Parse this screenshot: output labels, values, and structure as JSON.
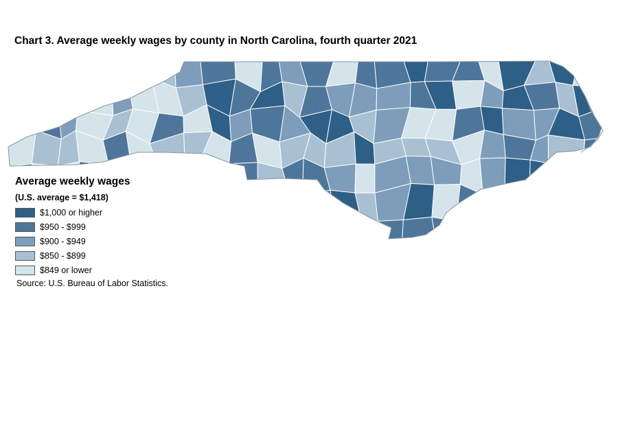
{
  "title": "Chart 3. Average weekly wages by county in North Carolina, fourth quarter 2021",
  "legend": {
    "title": "Average weekly wages",
    "subtitle": "(U.S. average = $1,418)",
    "items": [
      {
        "label": "$1,000 or higher",
        "color": "#2e5f86"
      },
      {
        "label": "$950 - $999",
        "color": "#4e769b"
      },
      {
        "label": "$900 - $949",
        "color": "#7d9dbb"
      },
      {
        "label": "$850 - $899",
        "color": "#a9c0d3"
      },
      {
        "label": "$849 or lower",
        "color": "#d5e3eb"
      }
    ]
  },
  "source": "Source: U.S. Bureau of Labor Statistics.",
  "map": {
    "region": "North Carolina counties",
    "outline_color": "#9aa7b2",
    "border_color": "#ffffff"
  }
}
